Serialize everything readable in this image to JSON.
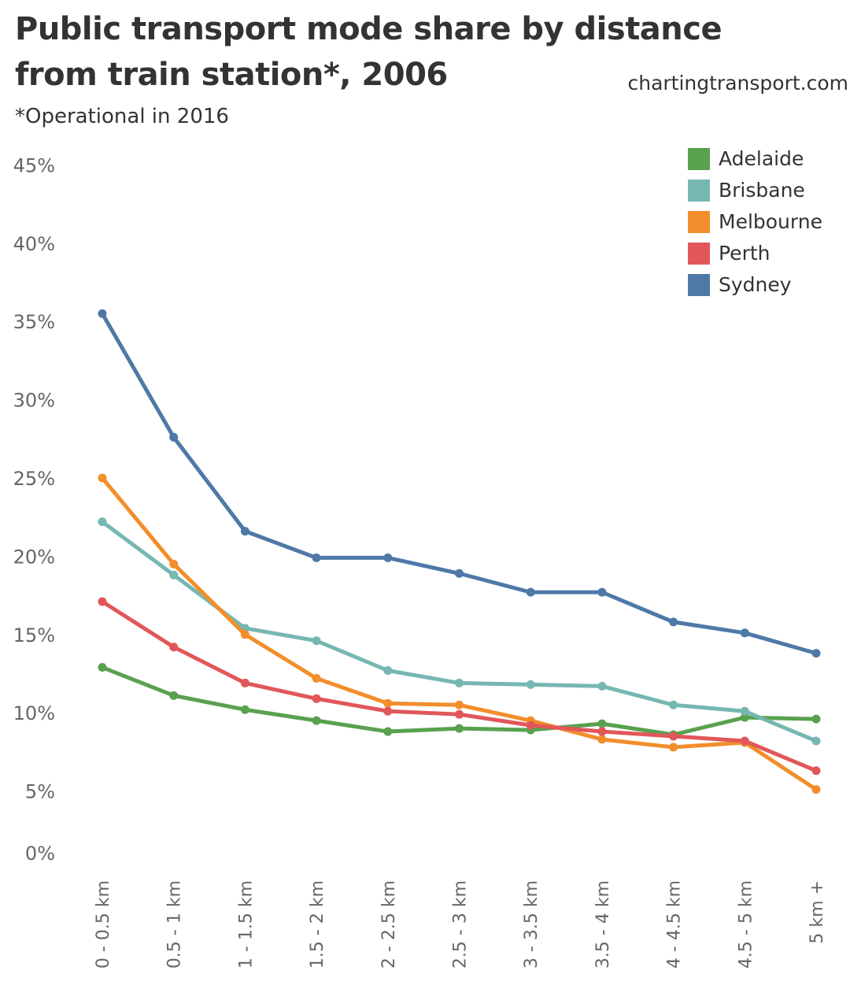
{
  "header": {
    "title": "Public transport mode share by distance from train station*, 2006",
    "subtitle": "*Operational in 2016",
    "site": "chartingtransport.com"
  },
  "chart_data": {
    "type": "line",
    "title": "Public transport mode share by distance from train station*, 2006",
    "subtitle": "*Operational in 2016",
    "xlabel": "",
    "ylabel": "",
    "ylim": [
      0,
      45
    ],
    "yticks": [
      0,
      5,
      10,
      15,
      20,
      25,
      30,
      35,
      40,
      45
    ],
    "ytick_labels": [
      "0%",
      "5%",
      "10%",
      "15%",
      "20%",
      "25%",
      "30%",
      "35%",
      "40%",
      "45%"
    ],
    "grid": false,
    "legend_position": "top-right",
    "categories": [
      "0 - 0.5 km",
      "0.5 - 1 km",
      "1 - 1.5 km",
      "1.5 - 2 km",
      "2 - 2.5 km",
      "2.5 - 3 km",
      "3 - 3.5 km",
      "3.5 - 4 km",
      "4 - 4.5 km",
      "4.5 - 5 km",
      "5 km +"
    ],
    "series": [
      {
        "name": "Adelaide",
        "color": "#59A14F",
        "values": [
          12.9,
          11.1,
          10.2,
          9.5,
          8.8,
          9.0,
          8.9,
          9.3,
          8.6,
          9.7,
          9.6
        ]
      },
      {
        "name": "Brisbane",
        "color": "#76B7B2",
        "values": [
          22.2,
          18.8,
          15.4,
          14.6,
          12.7,
          11.9,
          11.8,
          11.7,
          10.5,
          10.1,
          8.2
        ]
      },
      {
        "name": "Melbourne",
        "color": "#F28E2B",
        "values": [
          25.0,
          19.5,
          15.0,
          12.2,
          10.6,
          10.5,
          9.5,
          8.3,
          7.8,
          8.1,
          5.1
        ]
      },
      {
        "name": "Perth",
        "color": "#E15759",
        "values": [
          17.1,
          14.2,
          11.9,
          10.9,
          10.1,
          9.9,
          9.2,
          8.8,
          8.5,
          8.2,
          6.3
        ]
      },
      {
        "name": "Sydney",
        "color": "#4E79A7",
        "values": [
          35.5,
          27.6,
          21.6,
          19.9,
          19.9,
          18.9,
          17.7,
          17.7,
          15.8,
          15.1,
          13.8
        ]
      }
    ]
  }
}
